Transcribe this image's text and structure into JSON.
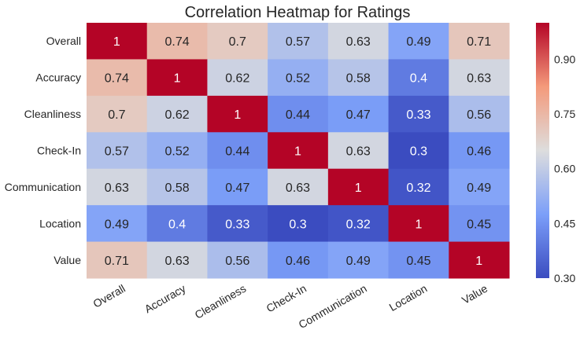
{
  "chart_data": {
    "type": "heatmap",
    "title": "Correlation Heatmap for Ratings",
    "xlabel": "",
    "ylabel": "",
    "x_categories": [
      "Overall",
      "Accuracy",
      "Cleanliness",
      "Check-In",
      "Communication",
      "Location",
      "Value"
    ],
    "y_categories": [
      "Overall",
      "Accuracy",
      "Cleanliness",
      "Check-In",
      "Communication",
      "Location",
      "Value"
    ],
    "values": [
      [
        1,
        0.74,
        0.7,
        0.57,
        0.63,
        0.49,
        0.71
      ],
      [
        0.74,
        1,
        0.62,
        0.52,
        0.58,
        0.4,
        0.63
      ],
      [
        0.7,
        0.62,
        1,
        0.44,
        0.47,
        0.33,
        0.56
      ],
      [
        0.57,
        0.52,
        0.44,
        1,
        0.63,
        0.3,
        0.46
      ],
      [
        0.63,
        0.58,
        0.47,
        0.63,
        1,
        0.32,
        0.49
      ],
      [
        0.49,
        0.4,
        0.33,
        0.3,
        0.32,
        1,
        0.45
      ],
      [
        0.71,
        0.63,
        0.56,
        0.46,
        0.49,
        0.45,
        1
      ]
    ],
    "colormap": "coolwarm",
    "vmin": 0.3,
    "vmax": 1.0,
    "colorbar_ticks": [
      "0.30",
      "0.45",
      "0.60",
      "0.75",
      "0.90"
    ],
    "annotated": true,
    "grid": false,
    "legend": "colorbar-right"
  }
}
